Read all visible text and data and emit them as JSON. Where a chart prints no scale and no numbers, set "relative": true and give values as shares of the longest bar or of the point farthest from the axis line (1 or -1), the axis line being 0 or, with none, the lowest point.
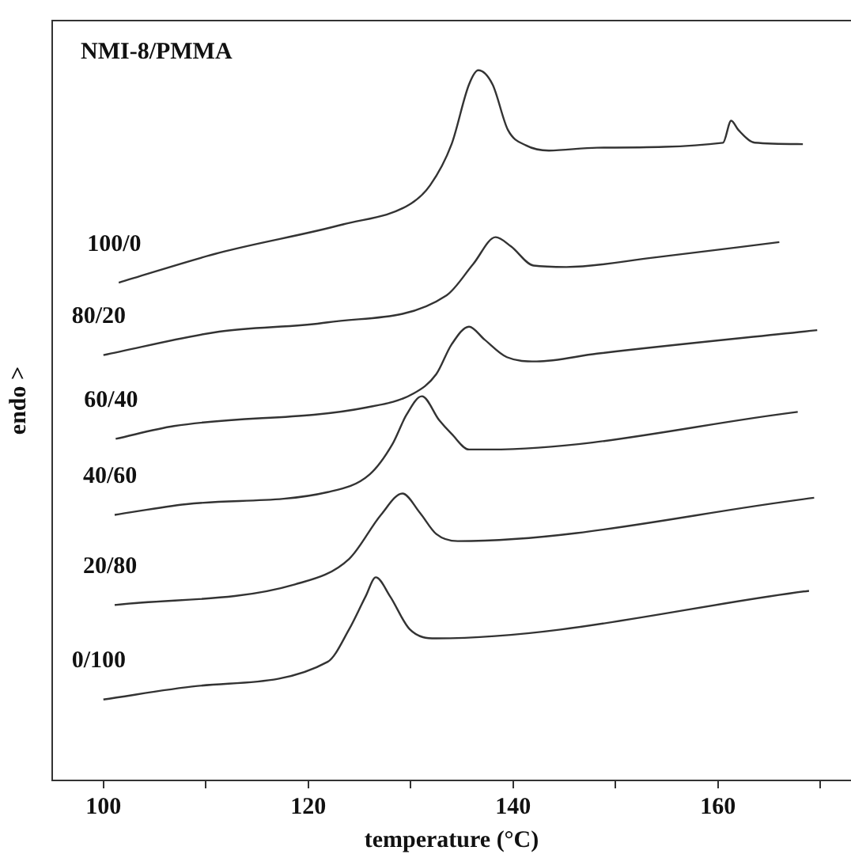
{
  "chart_data": {
    "type": "line",
    "title": "NMI-8/PMMA",
    "xlabel": "temperature (°C)",
    "ylabel": "endo >",
    "relative": true,
    "xlim": [
      95,
      173
    ],
    "xticks": [
      100,
      {
        "value": 110,
        "label": null
      },
      120,
      {
        "value": 130,
        "label": null
      },
      140,
      {
        "value": 150,
        "label": null
      },
      160,
      {
        "value": 170,
        "label": null
      }
    ],
    "grid": false,
    "legend": false,
    "marker": "none",
    "line_style": "solid",
    "series": [
      {
        "name": "100/0",
        "color": "#333333",
        "x": [
          101.5,
          111.3,
          123.4,
          130.0,
          131.9,
          134.0,
          135.7,
          136.6,
          138.0,
          139.5,
          141.3,
          143.5,
          148.2,
          160.5,
          161.3,
          162.0,
          163.6,
          168.3
        ],
        "values": [
          0.701,
          0.743,
          0.783,
          0.812,
          0.838,
          0.896,
          0.98,
          1,
          0.98,
          0.916,
          0.894,
          0.887,
          0.891,
          0.898,
          0.929,
          0.916,
          0.898,
          0.896
        ]
      },
      {
        "name": "80/20",
        "color": "#333333",
        "x": [
          100.0,
          111.3,
          121.9,
          133.5,
          136.1,
          138.3,
          139.8,
          142.0,
          145.2,
          153.6,
          166.0
        ],
        "values": [
          0.599,
          0.632,
          0.645,
          0.683,
          0.727,
          0.765,
          0.752,
          0.725,
          0.723,
          0.736,
          0.758
        ]
      },
      {
        "name": "60/40",
        "color": "#333333",
        "x": [
          101.2,
          106.9,
          125.6,
          130.3,
          132.5,
          134.0,
          135.7,
          137.2,
          139.4,
          142.3,
          148.2,
          169.7
        ],
        "values": [
          0.481,
          0.499,
          0.525,
          0.545,
          0.572,
          0.614,
          0.639,
          0.621,
          0.596,
          0.59,
          0.601,
          0.634
        ]
      },
      {
        "name": "40/60",
        "color": "#333333",
        "x": [
          101.1,
          108.1,
          121.9,
          126.0,
          128.2,
          129.6,
          131.1,
          132.8,
          134.0,
          135.7,
          137.7,
          167.8
        ],
        "values": [
          0.374,
          0.389,
          0.406,
          0.431,
          0.473,
          0.515,
          0.541,
          0.507,
          0.488,
          0.466,
          0.466,
          0.519
        ]
      },
      {
        "name": "20/80",
        "color": "#333333",
        "x": [
          101.1,
          118.7,
          124.0,
          127.1,
          129.2,
          130.9,
          132.5,
          134.6,
          169.4
        ],
        "values": [
          0.247,
          0.276,
          0.312,
          0.374,
          0.404,
          0.377,
          0.347,
          0.337,
          0.398
        ]
      },
      {
        "name": "0/100",
        "color": "#333333",
        "x": [
          100.0,
          109.2,
          121.9,
          124.0,
          125.6,
          126.6,
          128.0,
          129.9,
          132.5,
          168.9
        ],
        "values": [
          0.114,
          0.133,
          0.167,
          0.213,
          0.259,
          0.286,
          0.259,
          0.213,
          0.2,
          0.267
        ]
      }
    ]
  }
}
